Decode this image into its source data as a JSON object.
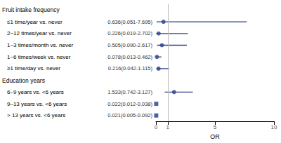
{
  "chart_data": {
    "type": "forest",
    "xlabel": "OR",
    "categories": [
      "Fruit intake frequency",
      "≤1 time/year vs. never",
      "2~12 times/year vs. never",
      "1~3 times/month vs. never",
      "1~6 times/week vs. never",
      "≥1 time/day vs. never",
      "Education years",
      "6–9 years vs. <6 years",
      "9–13 years vs. <6 years",
      "> 13 years vs. <6 years"
    ],
    "labels": [
      null,
      "0.636(0.051-7.695)",
      "0.226(0.019-2.702)",
      "0.505(0.090-2.617)",
      "0.078(0.013-0.462)",
      "0.216(0.042-1.115)",
      null,
      "1.533(0.742-3.127)",
      "0.022(0.012-0.038)",
      "0.021(0.005-0.092)"
    ],
    "values": [
      null,
      0.636,
      0.226,
      0.505,
      0.078,
      0.216,
      null,
      1.533,
      0.022,
      0.021
    ],
    "ci_low": [
      null,
      0.051,
      0.019,
      0.09,
      0.013,
      0.042,
      null,
      0.742,
      0.012,
      0.005
    ],
    "ci_high": [
      null,
      7.695,
      2.702,
      2.617,
      0.462,
      1.115,
      null,
      3.127,
      0.038,
      0.092
    ],
    "color": "#2b3f8c",
    "reference_line": {
      "x": 1,
      "color": "#bbbbbb"
    },
    "xlim": [
      0,
      10
    ],
    "xticks": [
      0,
      1,
      5,
      10
    ],
    "grid": false
  }
}
